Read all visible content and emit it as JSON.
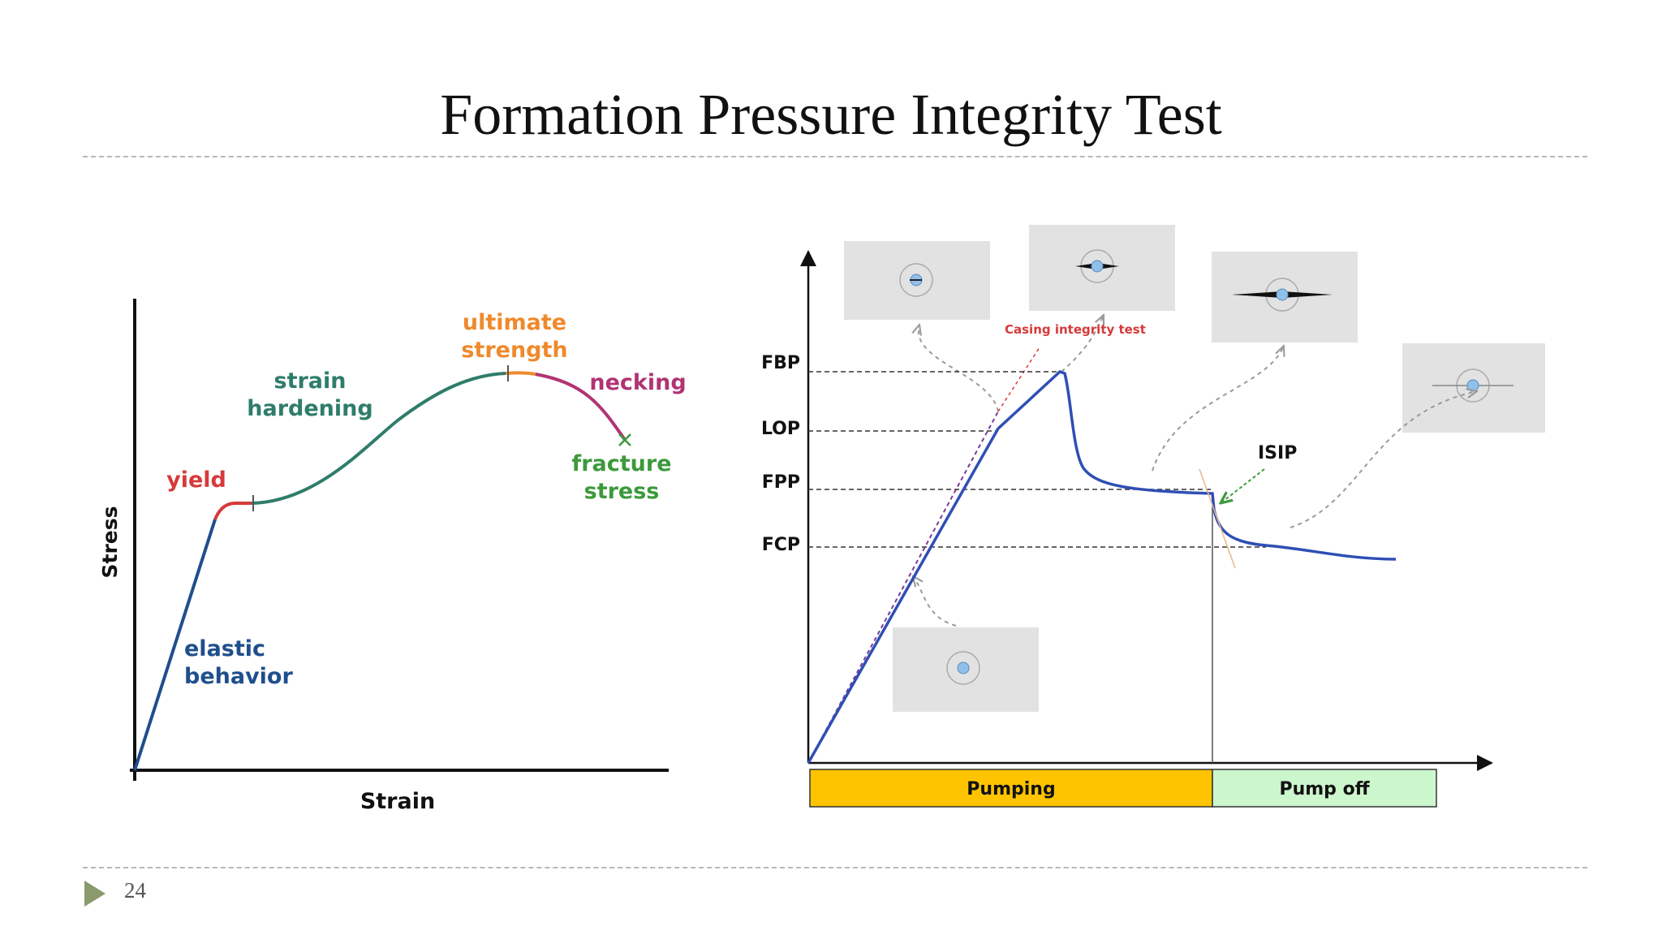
{
  "slide": {
    "title": "Formation Pressure Integrity Test",
    "page_number": "24"
  },
  "stress_strain": {
    "x_axis_label": "Strain",
    "y_axis_label": "Stress",
    "labels": {
      "ultimate_line1": "ultimate",
      "ultimate_line2": "strength",
      "hardening_line1": "strain",
      "hardening_line2": "hardening",
      "necking": "necking",
      "fracture_line1": "fracture",
      "fracture_line2": "stress",
      "yield": "yield",
      "elastic_line1": "elastic",
      "elastic_line2": "behavior"
    },
    "colors": {
      "elastic": "#1f4e8c",
      "yield": "#d63a3a",
      "hardening": "#2e7d6a",
      "ultimate": "#ef8a2c",
      "necking": "#b03474",
      "fracture": "#3c9a3c"
    }
  },
  "lot": {
    "levels": [
      "FBP",
      "LOP",
      "FPP",
      "FCP"
    ],
    "casing_label": "Casing integrity test",
    "isip_label": "ISIP",
    "phases": {
      "pumping": "Pumping",
      "pump_off": "Pump off"
    },
    "colors": {
      "curve": "#2f4fb5",
      "pumping": "#ffc400",
      "pump_off": "#ccf6cc",
      "casing_label": "#d63a3a",
      "isip_arrow": "#3c9a3c"
    }
  }
}
